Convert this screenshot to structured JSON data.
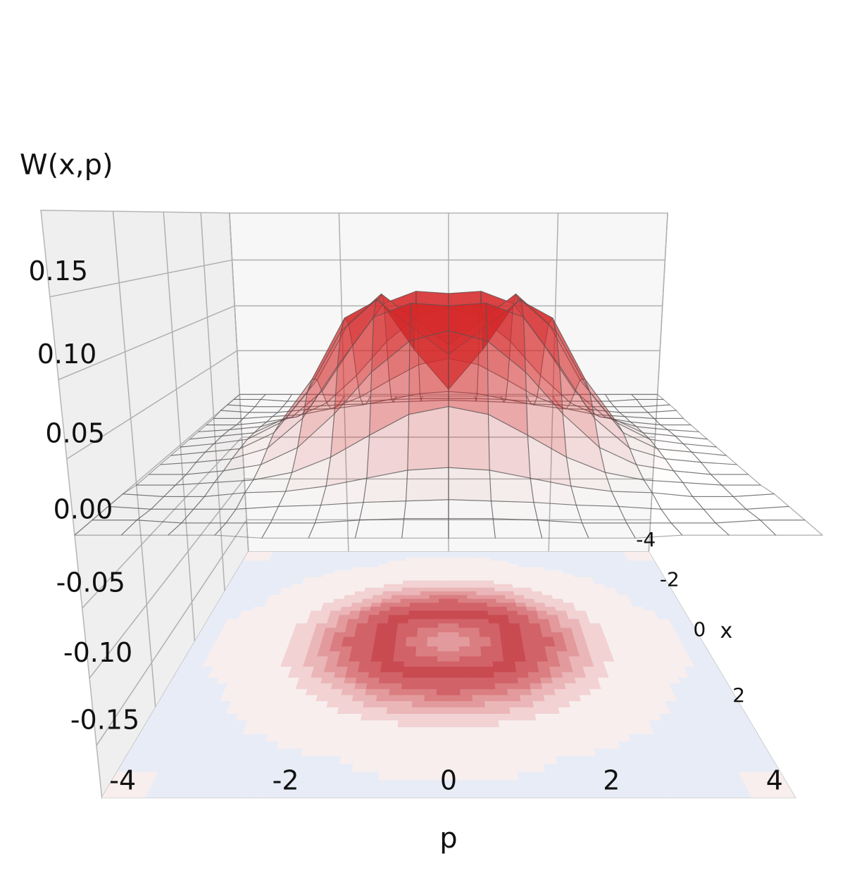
{
  "chart_data": {
    "type": "surface3d",
    "zlabel": "W(x,p)",
    "xlabel": "x",
    "ylabel": "p",
    "x": [
      -4,
      -3.5,
      -3,
      -2.5,
      -2,
      -1.5,
      -1,
      -0.5,
      0,
      0.5,
      1,
      1.5,
      2,
      2.5,
      3,
      3.5,
      4
    ],
    "y": [
      -4,
      -3.5,
      -3,
      -2.5,
      -2,
      -1.5,
      -1,
      -0.5,
      0,
      0.5,
      1,
      1.5,
      2,
      2.5,
      3,
      3.5,
      4
    ],
    "z": [
      [
        0,
        0,
        0,
        0,
        -0.002,
        -0.002,
        -0.002,
        -0.002,
        -0.002,
        -0.002,
        -0.002,
        -0.002,
        -0.002,
        0,
        0,
        0,
        0
      ],
      [
        0,
        0,
        -0.002,
        -0.002,
        -0.002,
        -0.002,
        0,
        0.001,
        0.001,
        0.001,
        0,
        -0.002,
        -0.002,
        -0.002,
        -0.002,
        0,
        0
      ],
      [
        0,
        -0.002,
        -0.002,
        -0.002,
        0,
        0.001,
        0.003,
        0.004,
        0.005,
        0.004,
        0.003,
        0.001,
        0,
        -0.002,
        -0.002,
        -0.002,
        0
      ],
      [
        0,
        -0.002,
        -0.002,
        0.001,
        0.002,
        0.006,
        0.012,
        0.018,
        0.02,
        0.018,
        0.012,
        0.006,
        0.002,
        0.001,
        -0.002,
        -0.002,
        0
      ],
      [
        -0.002,
        -0.002,
        0,
        0.002,
        0.008,
        0.02,
        0.037,
        0.053,
        0.059,
        0.053,
        0.037,
        0.02,
        0.008,
        0.002,
        0,
        -0.002,
        -0.002
      ],
      [
        -0.002,
        -0.002,
        0.001,
        0.006,
        0.02,
        0.047,
        0.08,
        0.104,
        0.112,
        0.104,
        0.08,
        0.047,
        0.02,
        0.006,
        0.001,
        -0.002,
        -0.002
      ],
      [
        -0.002,
        0,
        0.003,
        0.012,
        0.037,
        0.08,
        0.119,
        0.13,
        0.128,
        0.13,
        0.119,
        0.08,
        0.037,
        0.012,
        0.003,
        0,
        -0.002
      ],
      [
        -0.002,
        0.001,
        0.004,
        0.018,
        0.053,
        0.104,
        0.13,
        0.107,
        0.085,
        0.107,
        0.13,
        0.104,
        0.053,
        0.018,
        0.004,
        0.001,
        -0.002
      ],
      [
        -0.002,
        0.001,
        0.005,
        0.02,
        0.059,
        0.112,
        0.128,
        0.085,
        0.05,
        0.085,
        0.128,
        0.112,
        0.059,
        0.02,
        0.005,
        0.001,
        -0.002
      ],
      [
        -0.002,
        0.001,
        0.004,
        0.018,
        0.053,
        0.104,
        0.13,
        0.107,
        0.085,
        0.107,
        0.13,
        0.104,
        0.053,
        0.018,
        0.004,
        0.001,
        -0.002
      ],
      [
        -0.002,
        0,
        0.003,
        0.012,
        0.037,
        0.08,
        0.119,
        0.13,
        0.128,
        0.13,
        0.119,
        0.08,
        0.037,
        0.012,
        0.003,
        0,
        -0.002
      ],
      [
        -0.002,
        -0.002,
        0.001,
        0.006,
        0.02,
        0.047,
        0.08,
        0.104,
        0.112,
        0.104,
        0.08,
        0.047,
        0.02,
        0.006,
        0.001,
        -0.002,
        -0.002
      ],
      [
        -0.002,
        -0.002,
        0,
        0.002,
        0.008,
        0.02,
        0.037,
        0.053,
        0.059,
        0.053,
        0.037,
        0.02,
        0.008,
        0.002,
        0,
        -0.002,
        -0.002
      ],
      [
        0,
        -0.002,
        -0.002,
        0.001,
        0.002,
        0.006,
        0.012,
        0.018,
        0.02,
        0.018,
        0.012,
        0.006,
        0.002,
        0.001,
        -0.002,
        -0.002,
        0
      ],
      [
        0,
        -0.002,
        -0.002,
        -0.002,
        0,
        0.001,
        0.003,
        0.004,
        0.005,
        0.004,
        0.003,
        0.001,
        0,
        -0.002,
        -0.002,
        -0.002,
        0
      ],
      [
        0,
        0,
        -0.002,
        -0.002,
        -0.002,
        -0.002,
        0,
        0.001,
        0.001,
        0.001,
        0,
        -0.002,
        -0.002,
        -0.002,
        -0.002,
        0,
        0
      ],
      [
        0,
        0,
        0,
        0,
        -0.002,
        -0.002,
        -0.002,
        -0.002,
        -0.002,
        -0.002,
        -0.002,
        -0.002,
        -0.002,
        0,
        0,
        0,
        0
      ]
    ],
    "xlim": [
      -4,
      4
    ],
    "ylim": [
      -4,
      4
    ],
    "zlim": [
      -0.19,
      0.2
    ],
    "xticks": [
      -4,
      -2,
      0,
      2
    ],
    "yticks": [
      -4,
      -2,
      0,
      2,
      4
    ],
    "zticks": [
      -0.15,
      {
        "value": -0.1,
        "label": "-0.10"
      },
      -0.05,
      {
        "value": 0,
        "label": "0.00"
      },
      0.05,
      {
        "value": 0.1,
        "label": "0.10"
      },
      0.15
    ],
    "surface_color": "#d62728",
    "contour_levels": [
      -0.02,
      0,
      0.02,
      0.04,
      0.06,
      0.08,
      0.1,
      0.12,
      0.14
    ],
    "contour_colors": [
      "#e8ecf6",
      "#f8eeee",
      "#f2d2d3",
      "#ebb6b8",
      "#e39a9d",
      "#da7e82",
      "#d16268",
      "#c94a51"
    ],
    "grid": true
  }
}
